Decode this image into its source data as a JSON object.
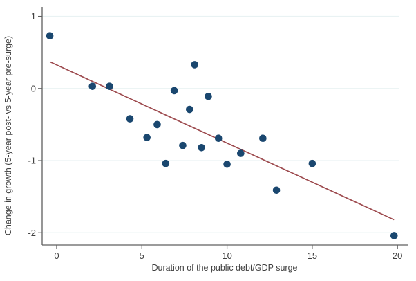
{
  "chart_data": {
    "type": "scatter",
    "title": "",
    "xlabel": "Duration of the public debt/GDP surge",
    "ylabel": "Change in growth (5-year post- vs 5-year pre-surge)",
    "x_ticks": [
      0,
      5,
      10,
      15,
      20
    ],
    "y_ticks": [
      1,
      0,
      -1,
      -2
    ],
    "x_tick_labels": [
      "0",
      "5",
      "10",
      "15",
      "20"
    ],
    "y_tick_labels": [
      "1",
      "0",
      "-1",
      "-2"
    ],
    "xlim": [
      -0.85,
      20.6
    ],
    "ylim": [
      -2.17,
      1.13
    ],
    "grid": "horizontal-only",
    "legend": "none",
    "points": [
      [
        -0.4,
        0.73
      ],
      [
        2.1,
        0.03
      ],
      [
        3.1,
        0.03
      ],
      [
        4.3,
        -0.42
      ],
      [
        5.3,
        -0.68
      ],
      [
        5.9,
        -0.5
      ],
      [
        6.4,
        -1.04
      ],
      [
        6.9,
        -0.03
      ],
      [
        7.4,
        -0.79
      ],
      [
        7.8,
        -0.29
      ],
      [
        8.1,
        0.33
      ],
      [
        8.5,
        -0.82
      ],
      [
        8.9,
        -0.11
      ],
      [
        9.5,
        -0.69
      ],
      [
        10.0,
        -1.05
      ],
      [
        10.8,
        -0.9
      ],
      [
        12.1,
        -0.69
      ],
      [
        12.9,
        -1.41
      ],
      [
        15.0,
        -1.04
      ],
      [
        19.8,
        -2.04
      ]
    ],
    "trend_line": {
      "x1": -0.4,
      "y1": 0.37,
      "x2": 19.8,
      "y2": -1.82
    },
    "colors": {
      "marker": "#1a476f",
      "trend": "#9d4a4e",
      "grid": "#e9f2f3",
      "axis": "#5f5f5f",
      "text": "#404040",
      "background": "#ffffff"
    }
  }
}
